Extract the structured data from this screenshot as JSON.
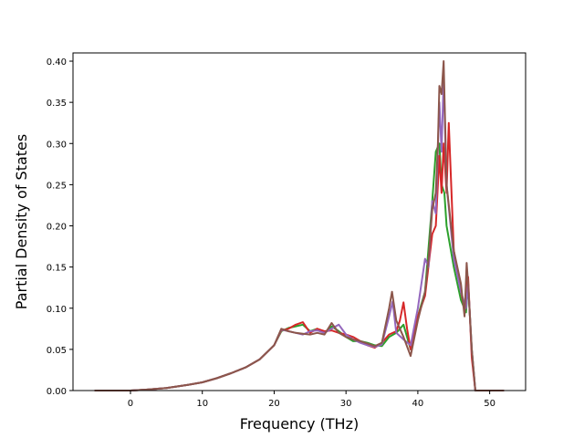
{
  "chart_data": {
    "type": "line",
    "title": "",
    "xlabel": "Frequency (THz)",
    "ylabel": "Partial Density of States",
    "xlim": [
      -8,
      55
    ],
    "ylim": [
      0,
      0.41
    ],
    "xticks": [
      0,
      10,
      20,
      30,
      40,
      50
    ],
    "yticks": [
      0.0,
      0.05,
      0.1,
      0.15,
      0.2,
      0.25,
      0.3,
      0.35,
      0.4
    ],
    "grid": false,
    "legend": "none",
    "series": [
      {
        "color": "#2ca02c",
        "x": [
          -5,
          0,
          2,
          5,
          8,
          10,
          12,
          14,
          16,
          18,
          20,
          21,
          22,
          23,
          24,
          25,
          26,
          27,
          28,
          29,
          30,
          31,
          32,
          33,
          34,
          35,
          36,
          37,
          38,
          39,
          40,
          41,
          42,
          42.5,
          43,
          43.3,
          43.7,
          44,
          45,
          46,
          46.7,
          47,
          47.5,
          48,
          52
        ],
        "y": [
          0,
          0,
          0.001,
          0.003,
          0.007,
          0.01,
          0.015,
          0.021,
          0.028,
          0.038,
          0.055,
          0.072,
          0.076,
          0.078,
          0.08,
          0.072,
          0.075,
          0.07,
          0.078,
          0.072,
          0.065,
          0.06,
          0.06,
          0.058,
          0.055,
          0.054,
          0.065,
          0.07,
          0.08,
          0.05,
          0.09,
          0.12,
          0.23,
          0.29,
          0.3,
          0.25,
          0.24,
          0.2,
          0.15,
          0.11,
          0.095,
          0.13,
          0.05,
          0,
          0
        ]
      },
      {
        "color": "#d62728",
        "x": [
          -5,
          0,
          2,
          5,
          8,
          10,
          12,
          14,
          16,
          18,
          20,
          21,
          22,
          23,
          24,
          25,
          26,
          27,
          28,
          29,
          30,
          31,
          32,
          33,
          34,
          35,
          36,
          37,
          37.5,
          38,
          38.5,
          39,
          40,
          41,
          42,
          42.5,
          43,
          43.3,
          43.6,
          44,
          44.3,
          45,
          46,
          46.5,
          47,
          47.5,
          48,
          52
        ],
        "y": [
          0,
          0,
          0.001,
          0.003,
          0.007,
          0.01,
          0.015,
          0.021,
          0.028,
          0.038,
          0.055,
          0.073,
          0.075,
          0.08,
          0.083,
          0.07,
          0.075,
          0.072,
          0.073,
          0.07,
          0.068,
          0.065,
          0.06,
          0.055,
          0.052,
          0.058,
          0.068,
          0.072,
          0.085,
          0.107,
          0.075,
          0.05,
          0.09,
          0.115,
          0.19,
          0.2,
          0.285,
          0.24,
          0.3,
          0.24,
          0.325,
          0.17,
          0.12,
          0.1,
          0.138,
          0.04,
          0,
          0
        ]
      },
      {
        "color": "#9467bd",
        "x": [
          -5,
          0,
          2,
          5,
          8,
          10,
          12,
          14,
          16,
          18,
          20,
          21,
          22,
          23,
          24,
          25,
          26,
          27,
          28,
          29,
          30,
          31,
          32,
          33,
          34,
          35,
          36,
          36.5,
          37,
          38,
          39,
          40,
          41,
          41.5,
          42,
          42.5,
          43,
          43.3,
          43.6,
          44,
          45,
          46,
          46.7,
          47,
          47.5,
          48,
          52
        ],
        "y": [
          0,
          0,
          0.001,
          0.003,
          0.007,
          0.01,
          0.015,
          0.021,
          0.028,
          0.038,
          0.055,
          0.074,
          0.072,
          0.07,
          0.068,
          0.072,
          0.073,
          0.07,
          0.075,
          0.08,
          0.068,
          0.062,
          0.058,
          0.055,
          0.053,
          0.056,
          0.09,
          0.108,
          0.07,
          0.062,
          0.055,
          0.1,
          0.16,
          0.15,
          0.23,
          0.215,
          0.35,
          0.29,
          0.38,
          0.25,
          0.16,
          0.12,
          0.1,
          0.13,
          0.05,
          0,
          0
        ]
      },
      {
        "color": "#8c564b",
        "x": [
          -5,
          0,
          2,
          5,
          8,
          10,
          12,
          14,
          16,
          18,
          20,
          21,
          22,
          23,
          24,
          25,
          26,
          27,
          28,
          29,
          30,
          31,
          32,
          33,
          34,
          35,
          36,
          36.4,
          37,
          38,
          39,
          40,
          41,
          41.5,
          42,
          42.5,
          42.8,
          43,
          43.3,
          43.6,
          44,
          45,
          46,
          46.5,
          46.8,
          47,
          47.5,
          48,
          52
        ],
        "y": [
          0,
          0,
          0.001,
          0.003,
          0.007,
          0.01,
          0.015,
          0.021,
          0.028,
          0.038,
          0.055,
          0.075,
          0.072,
          0.07,
          0.069,
          0.068,
          0.07,
          0.068,
          0.082,
          0.07,
          0.065,
          0.062,
          0.06,
          0.057,
          0.054,
          0.058,
          0.1,
          0.12,
          0.085,
          0.065,
          0.042,
          0.085,
          0.12,
          0.16,
          0.22,
          0.24,
          0.3,
          0.37,
          0.36,
          0.4,
          0.25,
          0.17,
          0.13,
          0.09,
          0.155,
          0.13,
          0.05,
          0,
          0
        ]
      }
    ]
  }
}
